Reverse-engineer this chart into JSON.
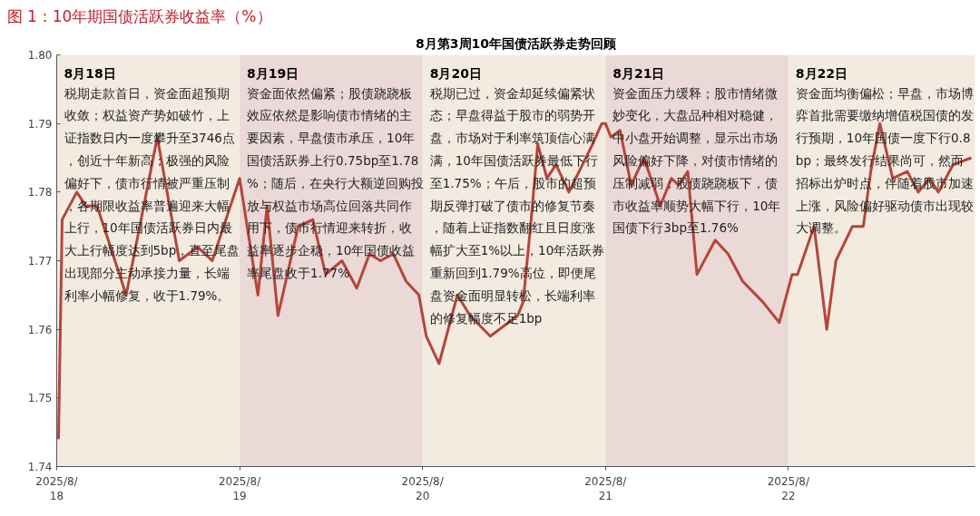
{
  "chart_data": {
    "type": "line",
    "title": "图 1：10年期国债活跃券收益率（%）",
    "subtitle": "8月第3周10年国债活跃券走势回顾",
    "x": [
      "2025-08-18T00:14",
      "2025-08-18T00:43",
      "2025-08-18T02:38",
      "2025-08-18T03:50",
      "2025-08-18T05:17",
      "2025-08-18T09:07",
      "2025-08-18T13:12",
      "2025-08-18T16:05",
      "2025-08-18T18:29",
      "2025-08-18T20:24",
      "2025-08-19T00:00",
      "2025-08-19T02:24",
      "2025-08-19T03:36",
      "2025-08-19T05:02",
      "2025-08-19T07:41",
      "2025-08-19T09:36",
      "2025-08-19T11:17",
      "2025-08-19T13:26",
      "2025-08-19T15:22",
      "2025-08-19T17:02",
      "2025-08-19T18:29",
      "2025-08-19T20:10",
      "2025-08-19T21:50",
      "2025-08-19T23:31",
      "2025-08-20T00:29",
      "2025-08-20T02:10",
      "2025-08-20T04:34",
      "2025-08-20T06:14",
      "2025-08-20T08:53",
      "2025-08-20T12:29",
      "2025-08-20T13:12",
      "2025-08-20T14:10",
      "2025-08-20T15:07",
      "2025-08-20T16:19",
      "2025-08-20T17:31",
      "2025-08-20T19:12",
      "2025-08-20T22:19",
      "2025-08-20T23:31",
      "2025-08-21T00:00",
      "2025-08-21T00:43",
      "2025-08-21T01:55",
      "2025-08-21T03:22",
      "2025-08-21T05:02",
      "2025-08-21T07:12",
      "2025-08-21T08:38",
      "2025-08-21T09:36",
      "2025-08-21T10:48",
      "2025-08-21T12:00",
      "2025-08-21T14:24",
      "2025-08-21T16:05",
      "2025-08-21T18:00",
      "2025-08-21T20:38",
      "2025-08-21T22:48",
      "2025-08-21T23:31",
      "2025-08-22T00:29",
      "2025-08-22T01:12",
      "2025-08-22T03:22",
      "2025-08-22T05:02",
      "2025-08-22T06:14",
      "2025-08-22T08:24",
      "2025-08-22T09:50",
      "2025-08-22T10:48",
      "2025-08-22T12:00",
      "2025-08-22T13:41",
      "2025-08-22T15:36",
      "2025-08-22T17:02",
      "2025-08-22T18:29",
      "2025-08-22T19:41",
      "2025-08-22T21:36",
      "2025-08-23T00:00"
    ],
    "series": [
      {
        "color": "#b5453a",
        "values": [
          1.744,
          1.776,
          1.78,
          1.778,
          1.778,
          1.765,
          1.788,
          1.77,
          1.772,
          1.77,
          1.782,
          1.765,
          1.778,
          1.762,
          1.775,
          1.776,
          1.768,
          1.77,
          1.766,
          1.771,
          1.77,
          1.771,
          1.767,
          1.765,
          1.759,
          1.755,
          1.765,
          1.762,
          1.759,
          1.762,
          1.764,
          1.775,
          1.787,
          1.782,
          1.784,
          1.78,
          1.787,
          1.79,
          1.79,
          1.788,
          1.789,
          1.781,
          1.785,
          1.778,
          1.782,
          1.781,
          1.783,
          1.768,
          1.773,
          1.771,
          1.767,
          1.764,
          1.761,
          1.764,
          1.768,
          1.768,
          1.775,
          1.76,
          1.77,
          1.775,
          1.775,
          1.783,
          1.79,
          1.782,
          1.783,
          1.78,
          1.782,
          1.78,
          1.784,
          1.785
        ]
      }
    ],
    "xlim": [
      "2025-08-18",
      "2025-08-23T00:29"
    ],
    "xticks": [
      {
        "value": "2025-08-18",
        "label": "2025/8/\n18"
      },
      {
        "value": "2025-08-19",
        "label": "2025/8/\n19"
      },
      {
        "value": "2025-08-20",
        "label": "2025/8/\n20"
      },
      {
        "value": "2025-08-21",
        "label": "2025/8/\n21"
      },
      {
        "value": "2025-08-22",
        "label": "2025/8/\n22"
      }
    ],
    "ylim": [
      1.74,
      1.8
    ],
    "yticks": [
      1.74,
      1.75,
      1.76,
      1.77,
      1.78,
      1.79,
      {
        "value": 1.8,
        "label": "1.80"
      }
    ],
    "grid": false,
    "line_style": "solid",
    "marker": "none",
    "bands": [
      {
        "axis": "x",
        "from": "2025-08-18",
        "to": "2025-08-19",
        "label": "8月18日",
        "color": "#f3ebe0"
      },
      {
        "axis": "x",
        "from": "2025-08-19",
        "to": "2025-08-20",
        "label": "8月19日",
        "color": "#ead9d6"
      },
      {
        "axis": "x",
        "from": "2025-08-20",
        "to": "2025-08-21",
        "label": "8月20日",
        "color": "#f3ebe0"
      },
      {
        "axis": "x",
        "from": "2025-08-21",
        "to": "2025-08-22",
        "label": "8月21日",
        "color": "#ead9d6"
      },
      {
        "axis": "x",
        "from": "2025-08-22",
        "to": "2025-08-23T00:29",
        "label": "8月22日",
        "color": "#f3ebe0"
      }
    ],
    "annotations": [
      "税期走款首日，资金面超预期收敛；权益资产势如破竹，上证指数日内一度攀升至3746点，创近十年新高；极强的风险偏好下，债市行情被严重压制，各期限收益率普遍迎来大幅上行，10年国债活跃券日内最大上行幅度达到5bp，直至尾盘出现部分主动承接力量，长端利率小幅修复，收于1.79%。",
      "资金面依然偏紧；股债跷跷板效应依然是影响债市情绪的主要因素，早盘债市承压，10年国债活跃券上行0.75bp至1.78%；随后，在央行大额逆回购投放与权益市场高位回落共同作用下，债市行情迎来转折，收益率逐步企稳，10年国债收益率尾盘收于1.77%",
      "税期已过，资金却延续偏紧状态；早盘得益于股市的弱势开盘，市场对于利率筑顶信心满满，10年国债活跃券最低下行至1.75%；午后，股市的超预期反弹打破了债市的修复节奏，随着上证指数翻红且日度涨幅扩大至1%以上，10年活跃券重新回到1.79%高位，即便尾盘资金面明显转松，长端利率的修复幅度不足1bp",
      "资金面压力缓释；股市情绪微妙变化，大盘品种相对稳健，中小盘开始调整，显示出市场风险偏好下降，对债市情绪的压制减弱；股债跷跷板下，债市收益率顺势大幅下行，10年国债下行3bp至1.76%",
      "资金面均衡偏松；早盘，市场博弈首批需要缴纳增值税国债的发行预期，10年国债一度下行0.8bp；最终发行结果尚可，然而招标出炉时点，伴随着股市加速上涨，风险偏好驱动债市出现较大调整。"
    ]
  }
}
